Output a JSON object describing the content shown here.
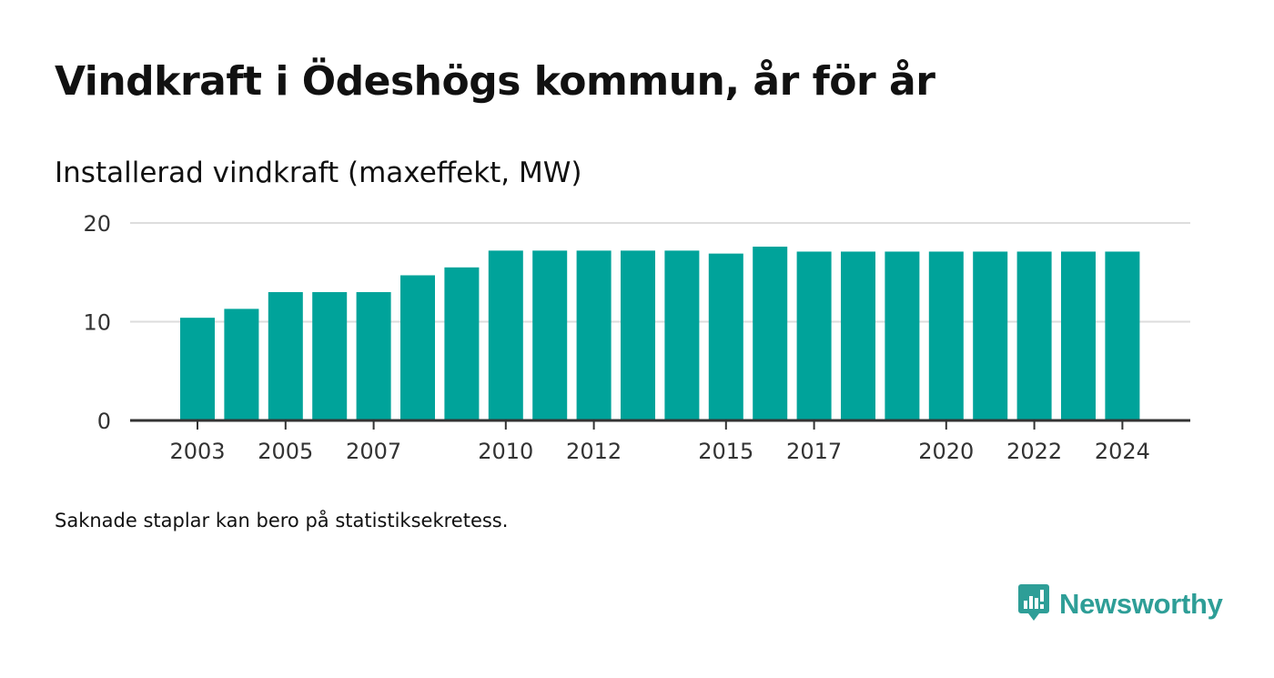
{
  "header": {
    "title": "Vindkraft i Ödeshögs kommun, år för år",
    "subtitle": "Installerad vindkraft (maxeffekt, MW)"
  },
  "footer": {
    "note": "Saknade staplar kan bero på statistiksekretess.",
    "brand_name": "Newsworthy",
    "brand_icon": "bar-chart-speech-bubble-icon"
  },
  "colors": {
    "bar": "#00a39a",
    "grid": "#dddddd",
    "axis": "#333333",
    "brand": "#2e9e97"
  },
  "chart_data": {
    "type": "bar",
    "title": "Vindkraft i Ödeshögs kommun, år för år",
    "subtitle": "Installerad vindkraft (maxeffekt, MW)",
    "categories": [
      "2003",
      "2004",
      "2005",
      "2006",
      "2007",
      "2008",
      "2009",
      "2010",
      "2011",
      "2012",
      "2013",
      "2014",
      "2015",
      "2016",
      "2017",
      "2018",
      "2019",
      "2020",
      "2021",
      "2022",
      "2023",
      "2024"
    ],
    "values": [
      10.4,
      11.3,
      13.0,
      13.0,
      13.0,
      14.7,
      15.5,
      17.2,
      17.2,
      17.2,
      17.2,
      17.2,
      16.9,
      17.6,
      17.1,
      17.1,
      17.1,
      17.1,
      17.1,
      17.1,
      17.1,
      17.1
    ],
    "x_tick_labels": [
      "2003",
      "2005",
      "2007",
      "2010",
      "2012",
      "2015",
      "2017",
      "2020",
      "2022",
      "2024"
    ],
    "y_ticks": [
      0,
      10,
      20
    ],
    "ylim": [
      0,
      20
    ],
    "xlabel": "",
    "ylabel": "",
    "grid": true,
    "legend": "none"
  }
}
